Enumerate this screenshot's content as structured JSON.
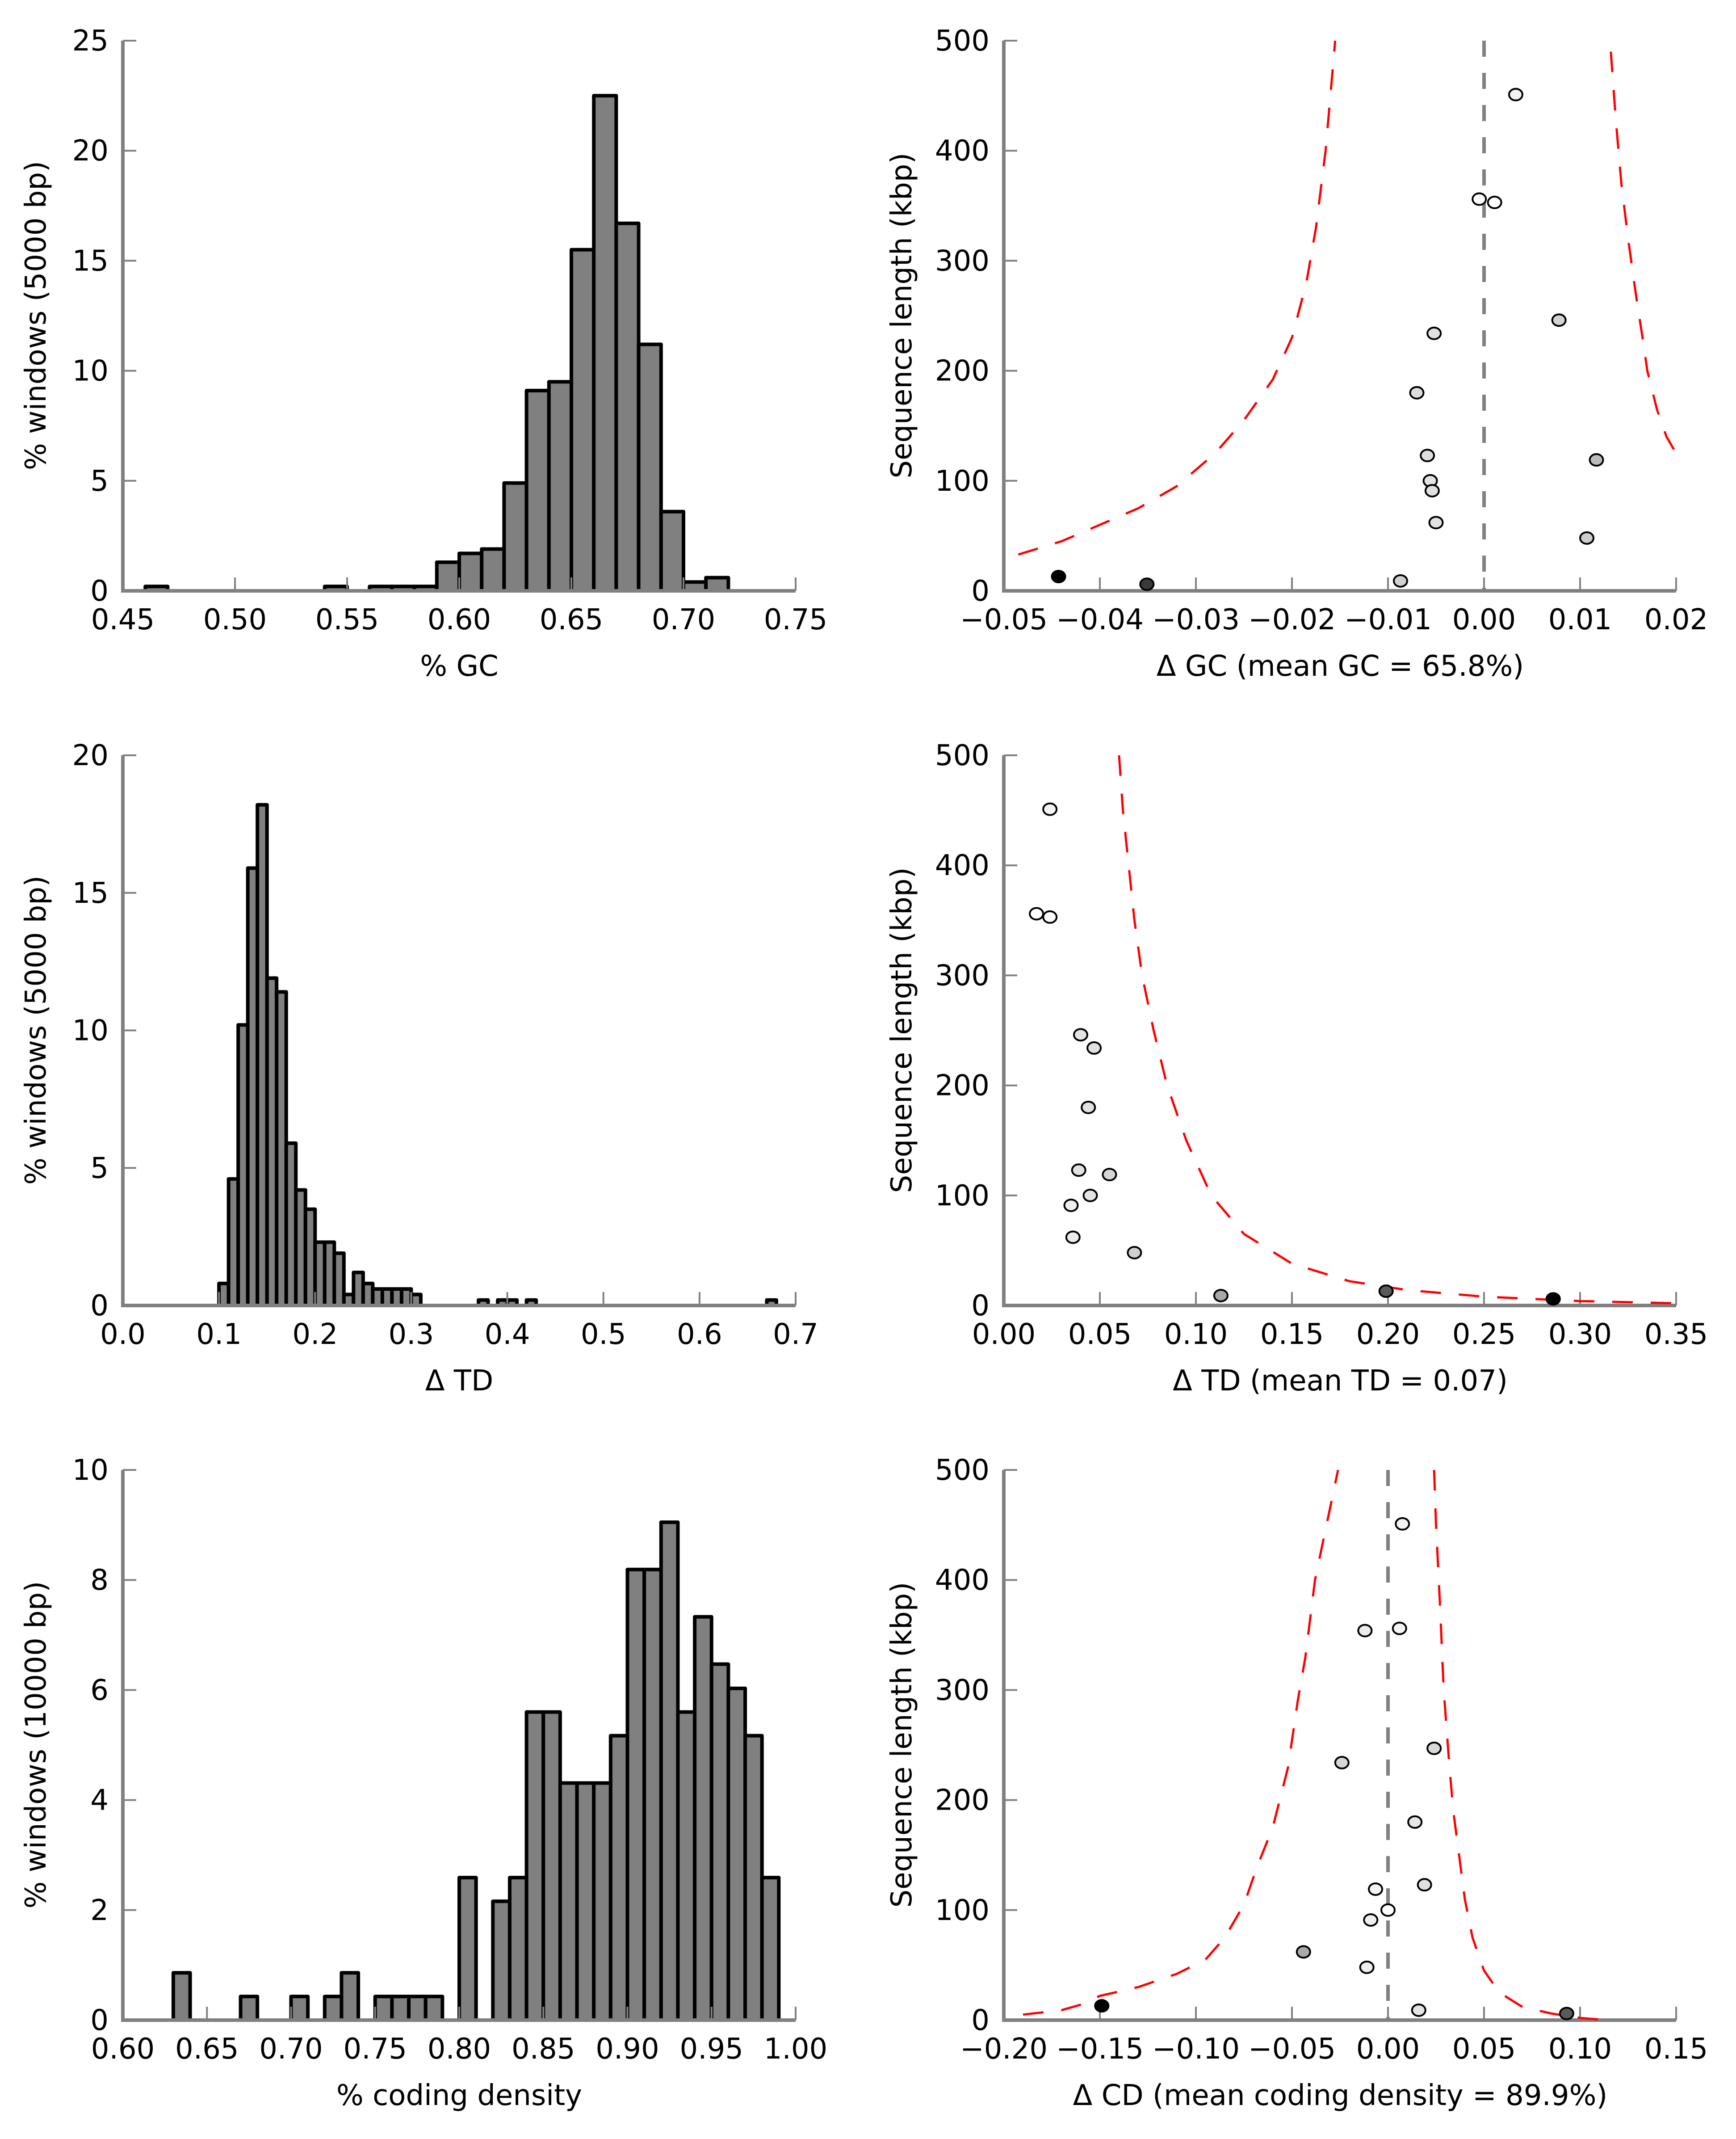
{
  "chart_data": [
    {
      "id": "gc-hist",
      "type": "bar",
      "panel": "top-left",
      "title": "",
      "xlabel": "% GC",
      "ylabel": "% windows (5000 bp)",
      "xlim": [
        0.45,
        0.75
      ],
      "ylim": [
        0,
        25
      ],
      "xticks": [
        "0.45",
        "0.50",
        "0.55",
        "0.60",
        "0.65",
        "0.70",
        "0.75"
      ],
      "yticks": [
        "0",
        "5",
        "10",
        "15",
        "20",
        "25"
      ],
      "bin_width": 0.01,
      "bins": [
        {
          "start": 0.46,
          "value": 0.2
        },
        {
          "start": 0.54,
          "value": 0.2
        },
        {
          "start": 0.56,
          "value": 0.2
        },
        {
          "start": 0.57,
          "value": 0.2
        },
        {
          "start": 0.58,
          "value": 0.2
        },
        {
          "start": 0.59,
          "value": 1.3
        },
        {
          "start": 0.6,
          "value": 1.7
        },
        {
          "start": 0.61,
          "value": 1.9
        },
        {
          "start": 0.62,
          "value": 4.9
        },
        {
          "start": 0.63,
          "value": 9.1
        },
        {
          "start": 0.64,
          "value": 9.5
        },
        {
          "start": 0.65,
          "value": 15.5
        },
        {
          "start": 0.66,
          "value": 22.5
        },
        {
          "start": 0.67,
          "value": 16.7
        },
        {
          "start": 0.68,
          "value": 11.2
        },
        {
          "start": 0.69,
          "value": 3.6
        },
        {
          "start": 0.7,
          "value": 0.4
        },
        {
          "start": 0.71,
          "value": 0.6
        }
      ],
      "bar_color": "#808080",
      "edge_color": "#000000",
      "grid": false
    },
    {
      "id": "gc-scatter",
      "type": "scatter",
      "panel": "top-right",
      "title": "",
      "xlabel": "Δ GC (mean GC = 65.8%)",
      "ylabel": "Sequence length (kbp)",
      "xlim": [
        -0.05,
        0.02
      ],
      "ylim": [
        0,
        500
      ],
      "xticks": [
        "−0.05",
        "−0.04",
        "−0.03",
        "−0.02",
        "−0.01",
        "0.00",
        "0.01",
        "0.02"
      ],
      "xtick_values": [
        -0.05,
        -0.04,
        -0.03,
        -0.02,
        -0.01,
        0.0,
        0.01,
        0.02
      ],
      "yticks": [
        "0",
        "100",
        "200",
        "300",
        "400",
        "500"
      ],
      "mean_line_x": 0.0,
      "points": [
        {
          "x": 0.0033,
          "y": 451,
          "fill": "#f2f2f2"
        },
        {
          "x": -0.0005,
          "y": 356,
          "fill": "#ffffff"
        },
        {
          "x": 0.0011,
          "y": 353,
          "fill": "#ffffff"
        },
        {
          "x": 0.0078,
          "y": 246,
          "fill": "#d4d4d4"
        },
        {
          "x": -0.0052,
          "y": 234,
          "fill": "#e0e0e0"
        },
        {
          "x": -0.007,
          "y": 180,
          "fill": "#dcdcdc"
        },
        {
          "x": -0.0059,
          "y": 123,
          "fill": "#dedede"
        },
        {
          "x": 0.0117,
          "y": 119,
          "fill": "#bcbcbc"
        },
        {
          "x": -0.0056,
          "y": 100,
          "fill": "#e4e4e4"
        },
        {
          "x": -0.0054,
          "y": 91,
          "fill": "#e0e0e0"
        },
        {
          "x": -0.005,
          "y": 62,
          "fill": "#e2e2e2"
        },
        {
          "x": 0.0107,
          "y": 48,
          "fill": "#cccccc"
        },
        {
          "x": -0.0087,
          "y": 9,
          "fill": "#d0d0d0"
        },
        {
          "x": -0.0443,
          "y": 13,
          "fill": "#000000"
        },
        {
          "x": -0.0351,
          "y": 6,
          "fill": "#3a3a3a"
        }
      ],
      "bounds": [
        [
          [
            -0.0485,
            33
          ],
          [
            -0.044,
            45
          ],
          [
            -0.04,
            60
          ],
          [
            -0.036,
            75
          ],
          [
            -0.032,
            95
          ],
          [
            -0.028,
            125
          ],
          [
            -0.025,
            155
          ],
          [
            -0.022,
            192
          ],
          [
            -0.02,
            230
          ],
          [
            -0.0185,
            280
          ],
          [
            -0.0175,
            330
          ],
          [
            -0.0165,
            400
          ],
          [
            -0.0155,
            500
          ]
        ],
        [
          [
            0.0132,
            490
          ],
          [
            0.0137,
            430
          ],
          [
            0.0143,
            370
          ],
          [
            0.015,
            320
          ],
          [
            0.0158,
            270
          ],
          [
            0.0165,
            230
          ],
          [
            0.017,
            200
          ],
          [
            0.018,
            165
          ],
          [
            0.019,
            140
          ],
          [
            0.02,
            125
          ]
        ]
      ],
      "bound_color": "#ff0000",
      "mean_line_color": "#808080"
    },
    {
      "id": "td-hist",
      "type": "bar",
      "panel": "middle-left",
      "title": "",
      "xlabel": "Δ TD",
      "ylabel": "% windows (5000 bp)",
      "xlim": [
        0.0,
        0.7
      ],
      "ylim": [
        0,
        20
      ],
      "xticks": [
        "0.0",
        "0.1",
        "0.2",
        "0.3",
        "0.4",
        "0.5",
        "0.6",
        "0.7"
      ],
      "yticks": [
        "0",
        "5",
        "10",
        "15",
        "20"
      ],
      "bin_width": 0.01,
      "bins": [
        {
          "start": 0.1,
          "value": 0.8
        },
        {
          "start": 0.11,
          "value": 4.6
        },
        {
          "start": 0.12,
          "value": 10.2
        },
        {
          "start": 0.13,
          "value": 15.9
        },
        {
          "start": 0.14,
          "value": 18.2
        },
        {
          "start": 0.15,
          "value": 11.9
        },
        {
          "start": 0.16,
          "value": 11.4
        },
        {
          "start": 0.17,
          "value": 5.9
        },
        {
          "start": 0.18,
          "value": 4.2
        },
        {
          "start": 0.19,
          "value": 3.5
        },
        {
          "start": 0.2,
          "value": 2.3
        },
        {
          "start": 0.21,
          "value": 2.3
        },
        {
          "start": 0.22,
          "value": 1.9
        },
        {
          "start": 0.23,
          "value": 0.4
        },
        {
          "start": 0.24,
          "value": 1.2
        },
        {
          "start": 0.25,
          "value": 0.8
        },
        {
          "start": 0.26,
          "value": 0.6
        },
        {
          "start": 0.27,
          "value": 0.6
        },
        {
          "start": 0.28,
          "value": 0.6
        },
        {
          "start": 0.29,
          "value": 0.6
        },
        {
          "start": 0.3,
          "value": 0.4
        },
        {
          "start": 0.37,
          "value": 0.2
        },
        {
          "start": 0.39,
          "value": 0.2
        },
        {
          "start": 0.4,
          "value": 0.2
        },
        {
          "start": 0.42,
          "value": 0.2
        },
        {
          "start": 0.67,
          "value": 0.2
        }
      ],
      "bar_color": "#808080",
      "edge_color": "#000000",
      "grid": false
    },
    {
      "id": "td-scatter",
      "type": "scatter",
      "panel": "middle-right",
      "title": "",
      "xlabel": "Δ TD (mean TD = 0.07)",
      "ylabel": "Sequence length (kbp)",
      "xlim": [
        0.0,
        0.35
      ],
      "ylim": [
        0,
        500
      ],
      "xticks": [
        "0.00",
        "0.05",
        "0.10",
        "0.15",
        "0.20",
        "0.25",
        "0.30",
        "0.35"
      ],
      "xtick_values": [
        0.0,
        0.05,
        0.1,
        0.15,
        0.2,
        0.25,
        0.3,
        0.35
      ],
      "yticks": [
        "0",
        "100",
        "200",
        "300",
        "400",
        "500"
      ],
      "mean_line_x": null,
      "points": [
        {
          "x": 0.024,
          "y": 451,
          "fill": "#f4f4f4"
        },
        {
          "x": 0.017,
          "y": 356,
          "fill": "#ffffff"
        },
        {
          "x": 0.024,
          "y": 353,
          "fill": "#ffffff"
        },
        {
          "x": 0.04,
          "y": 246,
          "fill": "#e4e4e4"
        },
        {
          "x": 0.047,
          "y": 234,
          "fill": "#e0e0e0"
        },
        {
          "x": 0.044,
          "y": 180,
          "fill": "#e2e2e2"
        },
        {
          "x": 0.039,
          "y": 123,
          "fill": "#e2e2e2"
        },
        {
          "x": 0.055,
          "y": 119,
          "fill": "#d6d6d6"
        },
        {
          "x": 0.045,
          "y": 100,
          "fill": "#e4e4e4"
        },
        {
          "x": 0.035,
          "y": 91,
          "fill": "#eeeeee"
        },
        {
          "x": 0.036,
          "y": 62,
          "fill": "#ebebeb"
        },
        {
          "x": 0.068,
          "y": 48,
          "fill": "#cfcfcf"
        },
        {
          "x": 0.113,
          "y": 9,
          "fill": "#a8a8a8"
        },
        {
          "x": 0.199,
          "y": 13,
          "fill": "#5a5a5a"
        },
        {
          "x": 0.286,
          "y": 6,
          "fill": "#000000"
        }
      ],
      "bounds": [
        [
          [
            0.06,
            500
          ],
          [
            0.062,
            450
          ],
          [
            0.065,
            400
          ],
          [
            0.068,
            350
          ],
          [
            0.072,
            300
          ],
          [
            0.078,
            250
          ],
          [
            0.085,
            200
          ],
          [
            0.095,
            150
          ],
          [
            0.108,
            100
          ],
          [
            0.125,
            65
          ],
          [
            0.15,
            38
          ],
          [
            0.18,
            22
          ],
          [
            0.21,
            14
          ],
          [
            0.25,
            8
          ],
          [
            0.3,
            4
          ],
          [
            0.35,
            2
          ]
        ]
      ],
      "bound_color": "#ff0000",
      "mean_line_color": "#808080"
    },
    {
      "id": "cd-hist",
      "type": "bar",
      "panel": "bottom-left",
      "title": "",
      "xlabel": "% coding density",
      "ylabel": "% windows (10000 bp)",
      "xlim": [
        0.6,
        1.0
      ],
      "ylim": [
        0,
        10
      ],
      "xticks": [
        "0.60",
        "0.65",
        "0.70",
        "0.75",
        "0.80",
        "0.85",
        "0.90",
        "0.95",
        "1.00"
      ],
      "yticks": [
        "0",
        "2",
        "4",
        "6",
        "8",
        "10"
      ],
      "bin_width": 0.01,
      "bins": [
        {
          "start": 0.63,
          "value": 0.86
        },
        {
          "start": 0.67,
          "value": 0.43
        },
        {
          "start": 0.7,
          "value": 0.43
        },
        {
          "start": 0.72,
          "value": 0.43
        },
        {
          "start": 0.73,
          "value": 0.86
        },
        {
          "start": 0.75,
          "value": 0.43
        },
        {
          "start": 0.76,
          "value": 0.43
        },
        {
          "start": 0.77,
          "value": 0.43
        },
        {
          "start": 0.78,
          "value": 0.43
        },
        {
          "start": 0.8,
          "value": 2.59
        },
        {
          "start": 0.82,
          "value": 2.16
        },
        {
          "start": 0.83,
          "value": 2.59
        },
        {
          "start": 0.84,
          "value": 5.6
        },
        {
          "start": 0.85,
          "value": 5.6
        },
        {
          "start": 0.86,
          "value": 4.31
        },
        {
          "start": 0.87,
          "value": 4.31
        },
        {
          "start": 0.88,
          "value": 4.31
        },
        {
          "start": 0.89,
          "value": 5.17
        },
        {
          "start": 0.9,
          "value": 8.19
        },
        {
          "start": 0.91,
          "value": 8.19
        },
        {
          "start": 0.92,
          "value": 9.05
        },
        {
          "start": 0.93,
          "value": 5.6
        },
        {
          "start": 0.94,
          "value": 7.33
        },
        {
          "start": 0.95,
          "value": 6.47
        },
        {
          "start": 0.96,
          "value": 6.03
        },
        {
          "start": 0.97,
          "value": 5.17
        },
        {
          "start": 0.98,
          "value": 2.59
        }
      ],
      "bar_color": "#808080",
      "edge_color": "#000000",
      "grid": false
    },
    {
      "id": "cd-scatter",
      "type": "scatter",
      "panel": "bottom-right",
      "title": "",
      "xlabel": "Δ CD (mean coding density = 89.9%)",
      "ylabel": "Sequence length (kbp)",
      "xlim": [
        -0.2,
        0.15
      ],
      "ylim": [
        0,
        500
      ],
      "xticks": [
        "−0.20",
        "−0.15",
        "−0.10",
        "−0.05",
        "0.00",
        "0.05",
        "0.10",
        "0.15"
      ],
      "xtick_values": [
        -0.2,
        -0.15,
        -0.1,
        -0.05,
        0.0,
        0.05,
        0.1,
        0.15
      ],
      "yticks": [
        "0",
        "100",
        "200",
        "300",
        "400",
        "500"
      ],
      "mean_line_x": 0.0,
      "points": [
        {
          "x": 0.0075,
          "y": 451,
          "fill": "#f2f2f2"
        },
        {
          "x": -0.012,
          "y": 354,
          "fill": "#ececec"
        },
        {
          "x": 0.006,
          "y": 356,
          "fill": "#f4f4f4"
        },
        {
          "x": 0.024,
          "y": 247,
          "fill": "#d8d8d8"
        },
        {
          "x": -0.024,
          "y": 234,
          "fill": "#d6d6d6"
        },
        {
          "x": 0.014,
          "y": 180,
          "fill": "#e6e6e6"
        },
        {
          "x": 0.019,
          "y": 123,
          "fill": "#e0e0e0"
        },
        {
          "x": -0.0065,
          "y": 119,
          "fill": "#f4f4f4"
        },
        {
          "x": 0.0,
          "y": 100,
          "fill": "#ffffff"
        },
        {
          "x": -0.009,
          "y": 91,
          "fill": "#f0f0f0"
        },
        {
          "x": -0.044,
          "y": 62,
          "fill": "#aaaaaa"
        },
        {
          "x": -0.011,
          "y": 48,
          "fill": "#eeeeee"
        },
        {
          "x": -0.149,
          "y": 13,
          "fill": "#000000"
        },
        {
          "x": 0.016,
          "y": 9,
          "fill": "#e4e4e4"
        },
        {
          "x": 0.093,
          "y": 6,
          "fill": "#5a5a5a"
        }
      ],
      "bounds": [
        [
          [
            -0.19,
            5
          ],
          [
            -0.17,
            9
          ],
          [
            -0.16,
            14
          ],
          [
            -0.15,
            22
          ],
          [
            -0.13,
            30
          ],
          [
            -0.11,
            42
          ],
          [
            -0.095,
            55
          ],
          [
            -0.085,
            75
          ],
          [
            -0.075,
            105
          ],
          [
            -0.068,
            140
          ],
          [
            -0.06,
            175
          ],
          [
            -0.052,
            230
          ],
          [
            -0.047,
            290
          ],
          [
            -0.043,
            330
          ],
          [
            -0.038,
            400
          ],
          [
            -0.032,
            450
          ],
          [
            -0.026,
            500
          ]
        ],
        [
          [
            0.024,
            500
          ],
          [
            0.025,
            450
          ],
          [
            0.027,
            380
          ],
          [
            0.029,
            300
          ],
          [
            0.032,
            230
          ],
          [
            0.034,
            190
          ],
          [
            0.037,
            150
          ],
          [
            0.04,
            110
          ],
          [
            0.044,
            75
          ],
          [
            0.05,
            45
          ],
          [
            0.058,
            25
          ],
          [
            0.07,
            12
          ],
          [
            0.085,
            6
          ],
          [
            0.1,
            2
          ],
          [
            0.114,
            0
          ]
        ]
      ],
      "bound_color": "#ff0000",
      "mean_line_color": "#808080"
    }
  ]
}
